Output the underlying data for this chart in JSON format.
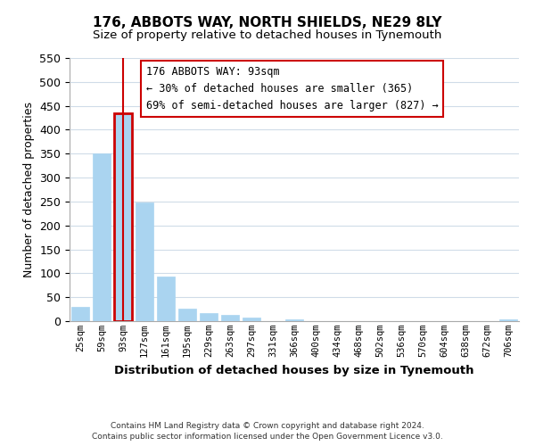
{
  "title": "176, ABBOTS WAY, NORTH SHIELDS, NE29 8LY",
  "subtitle": "Size of property relative to detached houses in Tynemouth",
  "xlabel": "Distribution of detached houses by size in Tynemouth",
  "ylabel": "Number of detached properties",
  "bar_labels": [
    "25sqm",
    "59sqm",
    "93sqm",
    "127sqm",
    "161sqm",
    "195sqm",
    "229sqm",
    "263sqm",
    "297sqm",
    "331sqm",
    "366sqm",
    "400sqm",
    "434sqm",
    "468sqm",
    "502sqm",
    "536sqm",
    "570sqm",
    "604sqm",
    "638sqm",
    "672sqm",
    "706sqm"
  ],
  "bar_values": [
    29,
    350,
    435,
    248,
    93,
    26,
    16,
    13,
    7,
    0,
    4,
    0,
    0,
    0,
    0,
    0,
    0,
    0,
    0,
    0,
    3
  ],
  "bar_color": "#aad4f0",
  "highlight_index": 2,
  "highlight_color": "#cc0000",
  "ylim": [
    0,
    550
  ],
  "yticks": [
    0,
    50,
    100,
    150,
    200,
    250,
    300,
    350,
    400,
    450,
    500,
    550
  ],
  "annotation_title": "176 ABBOTS WAY: 93sqm",
  "annotation_line1": "← 30% of detached houses are smaller (365)",
  "annotation_line2": "69% of semi-detached houses are larger (827) →",
  "footnote1": "Contains HM Land Registry data © Crown copyright and database right 2024.",
  "footnote2": "Contains public sector information licensed under the Open Government Licence v3.0.",
  "background_color": "#ffffff",
  "grid_color": "#d0dce8"
}
